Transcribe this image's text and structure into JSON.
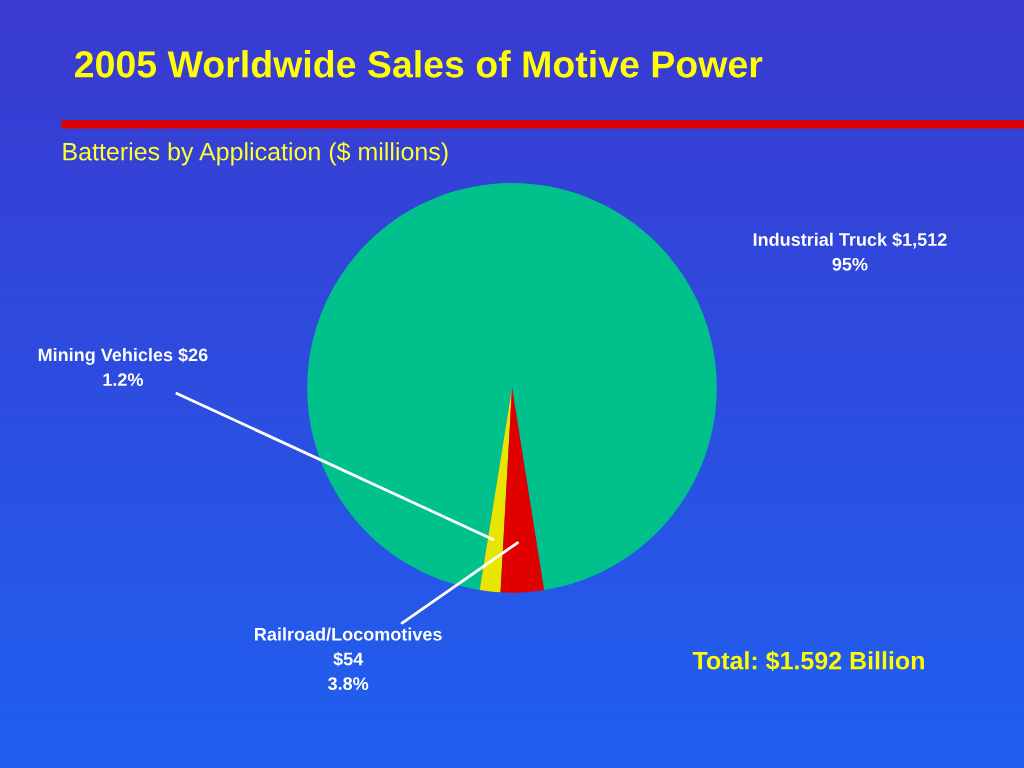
{
  "chart_data": {
    "type": "pie",
    "title": "2005 Worldwide Sales of Motive Power",
    "subtitle": "Batteries by Application ($ millions)",
    "categories": [
      "Industrial Truck",
      "Mining Vehicles",
      "Railroad/Locomotives"
    ],
    "values": [
      1512,
      26,
      54
    ],
    "colors": [
      "#00c08c",
      "#e6e600",
      "#e00000"
    ],
    "value_labels": [
      "$1,512\n95%",
      "$26\n1.2%",
      "$54\n3.8%"
    ],
    "annotations": [
      "Total: $1.592 Billion"
    ]
  }
}
